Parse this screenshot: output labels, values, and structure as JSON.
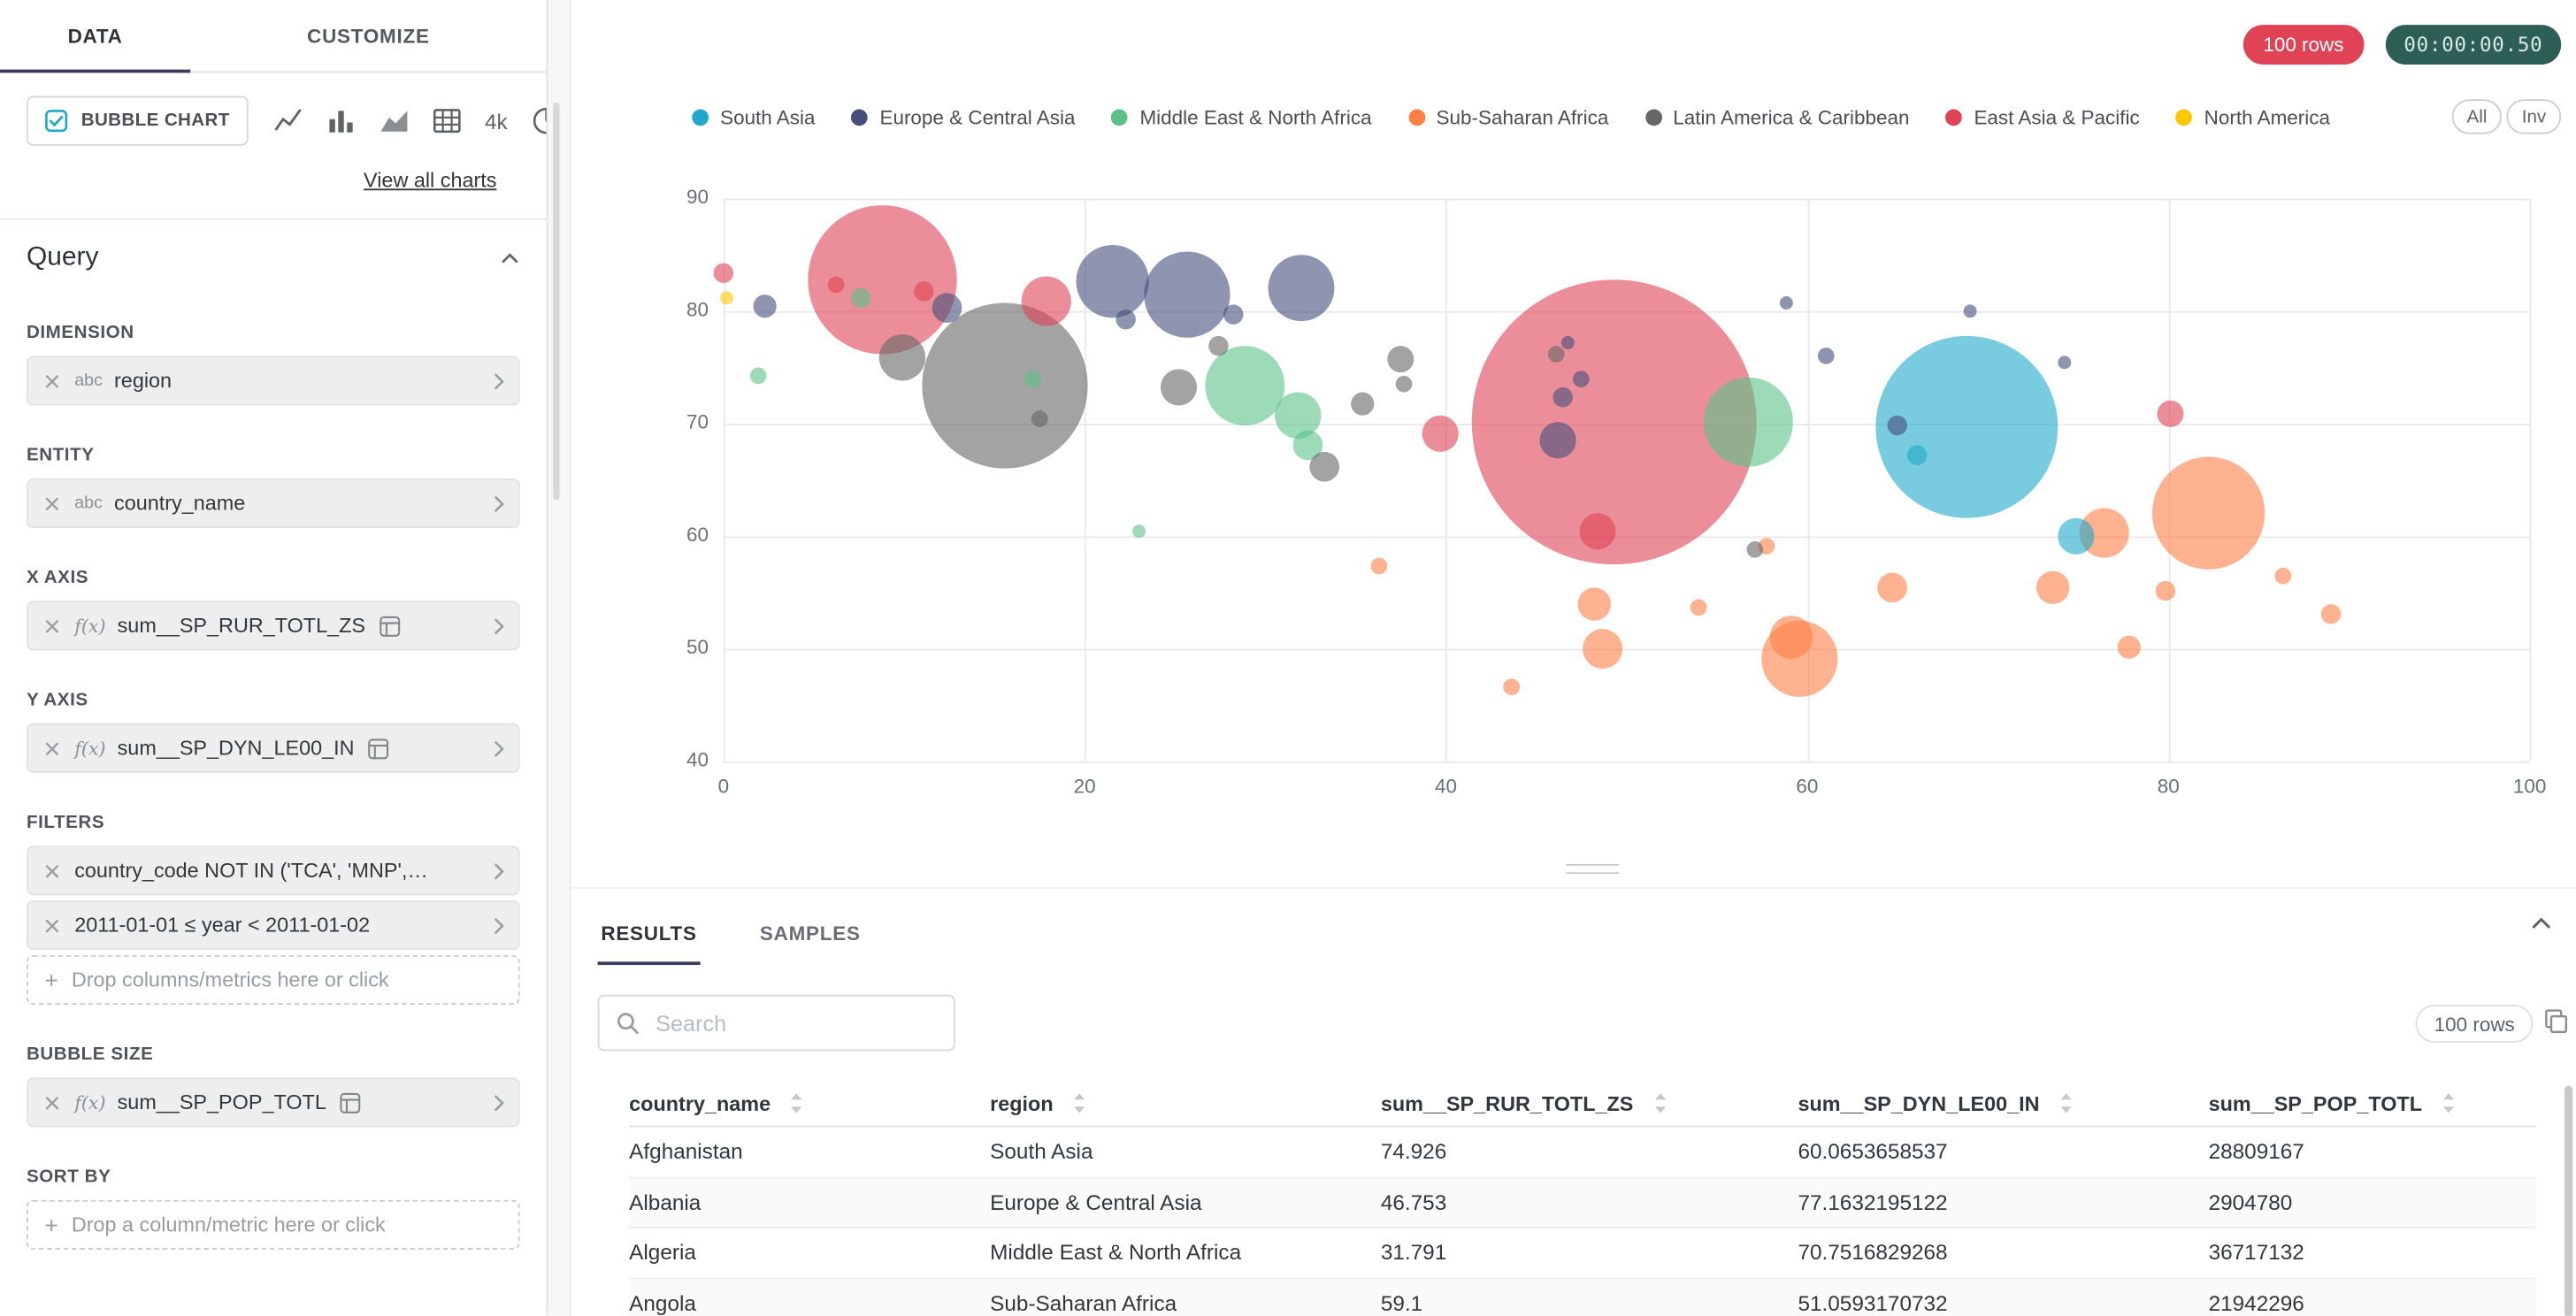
{
  "sidebar": {
    "tabs": [
      {
        "label": "DATA",
        "active": true
      },
      {
        "label": "CUSTOMIZE",
        "active": false
      }
    ],
    "viz_switcher": {
      "selected_label": "BUBBLE CHART",
      "icons": [
        "line-chart",
        "bar-chart",
        "area-chart",
        "table",
        "4k-chart",
        "pie-chart"
      ],
      "fourk_label": "4k",
      "view_all_label": "View all charts"
    },
    "query": {
      "title": "Query",
      "sections": [
        {
          "label": "DIMENSION",
          "chips": [
            {
              "prefix": "abc",
              "label": "region"
            }
          ]
        },
        {
          "label": "ENTITY",
          "chips": [
            {
              "prefix": "abc",
              "label": "country_name"
            }
          ]
        },
        {
          "label": "X AXIS",
          "chips": [
            {
              "prefix": "f(x)",
              "label": "sum__SP_RUR_TOTL_ZS",
              "calc": true
            }
          ]
        },
        {
          "label": "Y AXIS",
          "chips": [
            {
              "prefix": "f(x)",
              "label": "sum__SP_DYN_LE00_IN",
              "calc": true
            }
          ]
        },
        {
          "label": "FILTERS",
          "chips": [
            {
              "label": "country_code NOT IN ('TCA', 'MNP',…"
            },
            {
              "label": "2011-01-01 ≤ year < 2011-01-02"
            }
          ],
          "dropzone": "Drop columns/metrics here or click"
        },
        {
          "label": "BUBBLE SIZE",
          "chips": [
            {
              "prefix": "f(x)",
              "label": "sum__SP_POP_TOTL",
              "calc": true
            }
          ]
        },
        {
          "label": "SORT BY",
          "chips": [],
          "dropzone": "Drop a column/metric here or click"
        }
      ]
    }
  },
  "header": {
    "rows_badge": "100 rows",
    "timer": "00:00:00.50"
  },
  "chart_data": {
    "type": "bubble",
    "title": "",
    "xlabel": "sum__SP_RUR_TOTL_ZS",
    "ylabel": "sum__SP_DYN_LE00_IN",
    "xlim": [
      0,
      100
    ],
    "ylim": [
      40,
      90
    ],
    "x_ticks": [
      0,
      20,
      40,
      60,
      80,
      100
    ],
    "y_ticks": [
      40,
      50,
      60,
      70,
      80,
      90
    ],
    "grid": true,
    "legend": {
      "position": "top",
      "items": [
        {
          "label": "South Asia",
          "color": "#1FA8C9"
        },
        {
          "label": "Europe & Central Asia",
          "color": "#454E7C"
        },
        {
          "label": "Middle East & North Africa",
          "color": "#5AC189"
        },
        {
          "label": "Sub-Saharan Africa",
          "color": "#FF7F44"
        },
        {
          "label": "Latin America & Caribbean",
          "color": "#666666"
        },
        {
          "label": "East Asia & Pacific",
          "color": "#E04355"
        },
        {
          "label": "North America",
          "color": "#FCC700"
        }
      ],
      "buttons": [
        "All",
        "Inv"
      ]
    },
    "bubble_format": {
      "x": "rural population % (sum__SP_RUR_TOTL_ZS)",
      "y": "life expectancy (sum__SP_DYN_LE00_IN)",
      "r": "bubble radius px ~ sum__SP_POP_TOTL",
      "g": "legend item index"
    },
    "bubbles": [
      {
        "x": 68.8,
        "y": 69.7,
        "r": 55,
        "g": 0
      },
      {
        "x": 74.926,
        "y": 60.065,
        "r": 11,
        "g": 0
      },
      {
        "x": 66.1,
        "y": 67.2,
        "r": 6,
        "g": 0
      },
      {
        "x": 2.3,
        "y": 80.4,
        "r": 7,
        "g": 1
      },
      {
        "x": 12.4,
        "y": 80.3,
        "r": 9,
        "g": 1
      },
      {
        "x": 21.5,
        "y": 82.6,
        "r": 22,
        "g": 1
      },
      {
        "x": 25.7,
        "y": 81.5,
        "r": 26,
        "g": 1
      },
      {
        "x": 32.0,
        "y": 82.1,
        "r": 20,
        "g": 1
      },
      {
        "x": 22.3,
        "y": 79.3,
        "r": 6,
        "g": 1
      },
      {
        "x": 28.2,
        "y": 79.7,
        "r": 6,
        "g": 1
      },
      {
        "x": 46.753,
        "y": 77.163,
        "r": 4,
        "g": 1
      },
      {
        "x": 58.8,
        "y": 80.7,
        "r": 4,
        "g": 1
      },
      {
        "x": 61.0,
        "y": 76.0,
        "r": 5,
        "g": 1
      },
      {
        "x": 65.0,
        "y": 69.9,
        "r": 6,
        "g": 1
      },
      {
        "x": 69.0,
        "y": 80.0,
        "r": 4,
        "g": 1
      },
      {
        "x": 46.5,
        "y": 72.4,
        "r": 6,
        "g": 1
      },
      {
        "x": 47.5,
        "y": 73.9,
        "r": 5,
        "g": 1
      },
      {
        "x": 74.2,
        "y": 75.4,
        "r": 4,
        "g": 1
      },
      {
        "x": 46.2,
        "y": 68.5,
        "r": 11,
        "g": 1
      },
      {
        "x": 1.9,
        "y": 74.3,
        "r": 5,
        "g": 2
      },
      {
        "x": 7.6,
        "y": 81.2,
        "r": 6,
        "g": 2
      },
      {
        "x": 17.1,
        "y": 74.0,
        "r": 5,
        "g": 2
      },
      {
        "x": 28.9,
        "y": 73.4,
        "r": 24,
        "g": 2
      },
      {
        "x": 31.791,
        "y": 70.752,
        "r": 14,
        "g": 2
      },
      {
        "x": 32.4,
        "y": 68.1,
        "r": 9,
        "g": 2
      },
      {
        "x": 56.7,
        "y": 70.1,
        "r": 27,
        "g": 2
      },
      {
        "x": 23.0,
        "y": 60.4,
        "r": 4,
        "g": 2
      },
      {
        "x": 82.2,
        "y": 62.1,
        "r": 34,
        "g": 3
      },
      {
        "x": 76.4,
        "y": 60.3,
        "r": 15,
        "g": 3
      },
      {
        "x": 59.6,
        "y": 49.1,
        "r": 23,
        "g": 3
      },
      {
        "x": 59.1,
        "y": 51.059,
        "r": 13,
        "g": 3
      },
      {
        "x": 48.7,
        "y": 50.0,
        "r": 12,
        "g": 3
      },
      {
        "x": 48.2,
        "y": 54.0,
        "r": 10,
        "g": 3
      },
      {
        "x": 43.6,
        "y": 46.6,
        "r": 5,
        "g": 3
      },
      {
        "x": 64.7,
        "y": 55.4,
        "r": 9,
        "g": 3
      },
      {
        "x": 73.6,
        "y": 55.4,
        "r": 10,
        "g": 3
      },
      {
        "x": 77.8,
        "y": 50.1,
        "r": 7,
        "g": 3
      },
      {
        "x": 89.0,
        "y": 53.1,
        "r": 6,
        "g": 3
      },
      {
        "x": 54.0,
        "y": 53.7,
        "r": 5,
        "g": 3
      },
      {
        "x": 57.7,
        "y": 59.1,
        "r": 5,
        "g": 3
      },
      {
        "x": 36.3,
        "y": 57.4,
        "r": 5,
        "g": 3
      },
      {
        "x": 79.8,
        "y": 55.2,
        "r": 6,
        "g": 3
      },
      {
        "x": 86.3,
        "y": 56.5,
        "r": 5,
        "g": 3
      },
      {
        "x": 9.9,
        "y": 75.9,
        "r": 14,
        "g": 4
      },
      {
        "x": 15.6,
        "y": 73.4,
        "r": 50,
        "g": 4
      },
      {
        "x": 25.2,
        "y": 73.2,
        "r": 11,
        "g": 4
      },
      {
        "x": 17.5,
        "y": 70.4,
        "r": 5,
        "g": 4
      },
      {
        "x": 27.4,
        "y": 76.9,
        "r": 6,
        "g": 4
      },
      {
        "x": 35.4,
        "y": 71.8,
        "r": 7,
        "g": 4
      },
      {
        "x": 37.5,
        "y": 75.7,
        "r": 8,
        "g": 4
      },
      {
        "x": 33.3,
        "y": 66.2,
        "r": 9,
        "g": 4
      },
      {
        "x": 37.7,
        "y": 73.5,
        "r": 5,
        "g": 4
      },
      {
        "x": 46.1,
        "y": 76.2,
        "r": 5,
        "g": 4
      },
      {
        "x": 57.1,
        "y": 58.8,
        "r": 5,
        "g": 4
      },
      {
        "x": 0.0,
        "y": 83.4,
        "r": 6,
        "g": 5
      },
      {
        "x": 8.8,
        "y": 82.8,
        "r": 45,
        "g": 5
      },
      {
        "x": 6.2,
        "y": 82.4,
        "r": 5,
        "g": 5
      },
      {
        "x": 11.1,
        "y": 81.8,
        "r": 6,
        "g": 5
      },
      {
        "x": 17.9,
        "y": 80.9,
        "r": 15,
        "g": 5
      },
      {
        "x": 39.7,
        "y": 69.1,
        "r": 11,
        "g": 5
      },
      {
        "x": 49.3,
        "y": 70.1,
        "r": 86,
        "g": 5
      },
      {
        "x": 48.4,
        "y": 60.4,
        "r": 11,
        "g": 5
      },
      {
        "x": 80.1,
        "y": 70.9,
        "r": 8,
        "g": 5
      },
      {
        "x": 0.2,
        "y": 81.2,
        "r": 4,
        "g": 6
      }
    ]
  },
  "results": {
    "tabs": [
      "RESULTS",
      "SAMPLES"
    ],
    "search_placeholder": "Search",
    "rows_badge": "100 rows",
    "table": {
      "columns": [
        "country_name",
        "region",
        "sum__SP_RUR_TOTL_ZS",
        "sum__SP_DYN_LE00_IN",
        "sum__SP_POP_TOTL"
      ],
      "rows": [
        [
          "Afghanistan",
          "South Asia",
          "74.926",
          "60.0653658537",
          "28809167"
        ],
        [
          "Albania",
          "Europe & Central Asia",
          "46.753",
          "77.1632195122",
          "2904780"
        ],
        [
          "Algeria",
          "Middle East & North Africa",
          "31.791",
          "70.7516829268",
          "36717132"
        ],
        [
          "Angola",
          "Sub-Saharan Africa",
          "59.1",
          "51.0593170732",
          "21942296"
        ]
      ]
    }
  }
}
